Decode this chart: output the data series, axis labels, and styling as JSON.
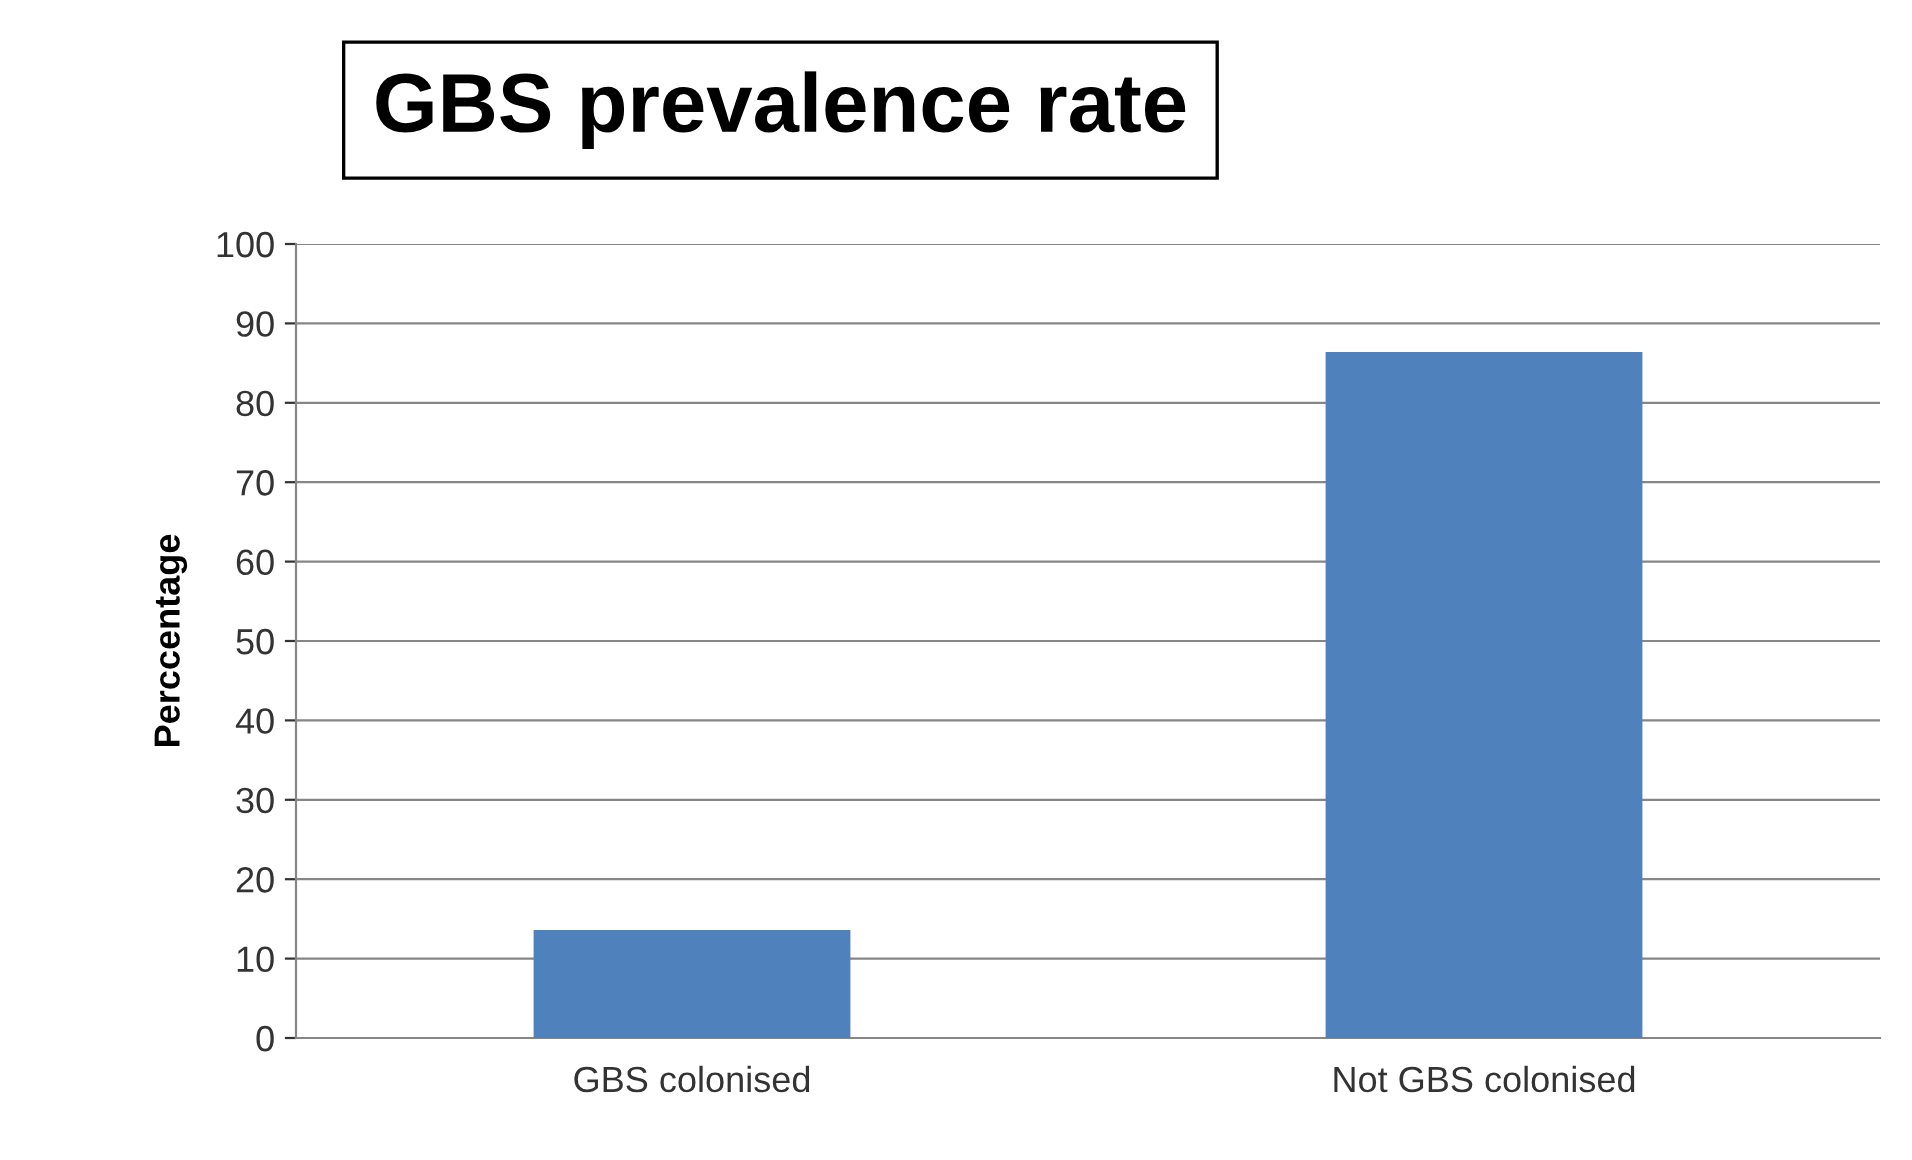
{
  "chart_data": {
    "type": "bar",
    "title": "GBS prevalence rate",
    "ylabel": "Perccentage",
    "categories": [
      "GBS colonised",
      "Not GBS colonised"
    ],
    "values": [
      13.6,
      86.4
    ],
    "color": "#4f81bd",
    "ylim": [
      0,
      100
    ],
    "yticks": [
      0,
      10,
      20,
      30,
      40,
      50,
      60,
      70,
      80,
      90,
      100
    ],
    "grid": "y"
  }
}
